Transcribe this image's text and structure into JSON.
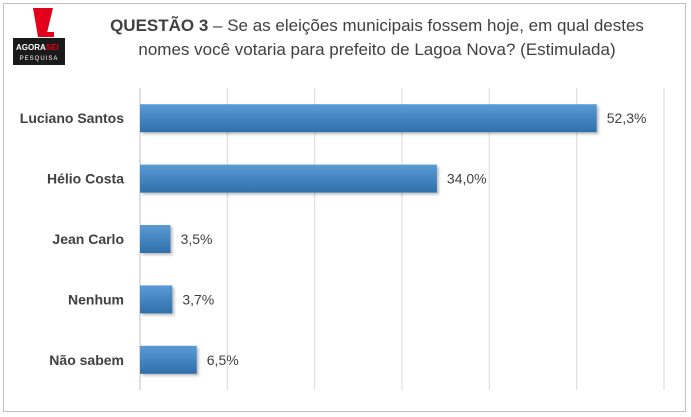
{
  "logo": {
    "top_text": "AGORA",
    "top_text_accent": "SEI",
    "bottom_text": "PESQUISA",
    "colors": {
      "mark": "#e2001a",
      "box": "#1a1a1a",
      "text": "#ffffff"
    }
  },
  "title": {
    "question_label": "QUESTÃO 3",
    "line1_rest": " – Se as eleições municipais fossem hoje, em qual destes",
    "line2": "nomes você votaria para prefeito de Lagoa Nova? (Estimulada)"
  },
  "chart_data": {
    "type": "bar",
    "orientation": "horizontal",
    "categories": [
      "Luciano Santos",
      "Hélio Costa",
      "Jean Carlo",
      "Nenhum",
      "Não sabem"
    ],
    "values": [
      52.3,
      34.0,
      3.5,
      3.7,
      6.5
    ],
    "value_labels": [
      "52,3%",
      "34,0%",
      "3,5%",
      "3,7%",
      "6,5%"
    ],
    "xlim": [
      0,
      60
    ],
    "grid": true,
    "colors": {
      "bar": "#5b9bd5",
      "bar_dark": "#2f6faa",
      "grid": "#d9d9d9",
      "text": "#404040"
    }
  }
}
